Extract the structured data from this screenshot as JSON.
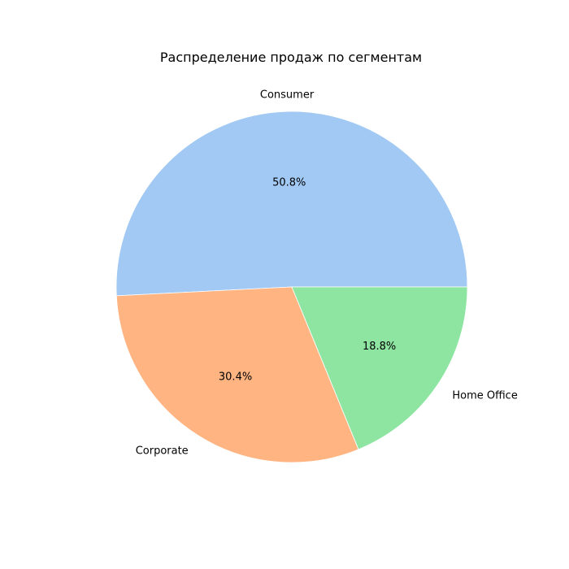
{
  "chart_data": {
    "type": "pie",
    "title": "Распределение продаж по сегментам",
    "categories": [
      "Consumer",
      "Corporate",
      "Home Office"
    ],
    "values": [
      50.8,
      30.4,
      18.8
    ],
    "value_labels": [
      "50.8%",
      "30.4%",
      "18.8%"
    ],
    "colors": [
      "#a1c9f4",
      "#ffb482",
      "#8de5a1"
    ],
    "start_angle_deg": 0,
    "direction": "counterclockwise"
  }
}
